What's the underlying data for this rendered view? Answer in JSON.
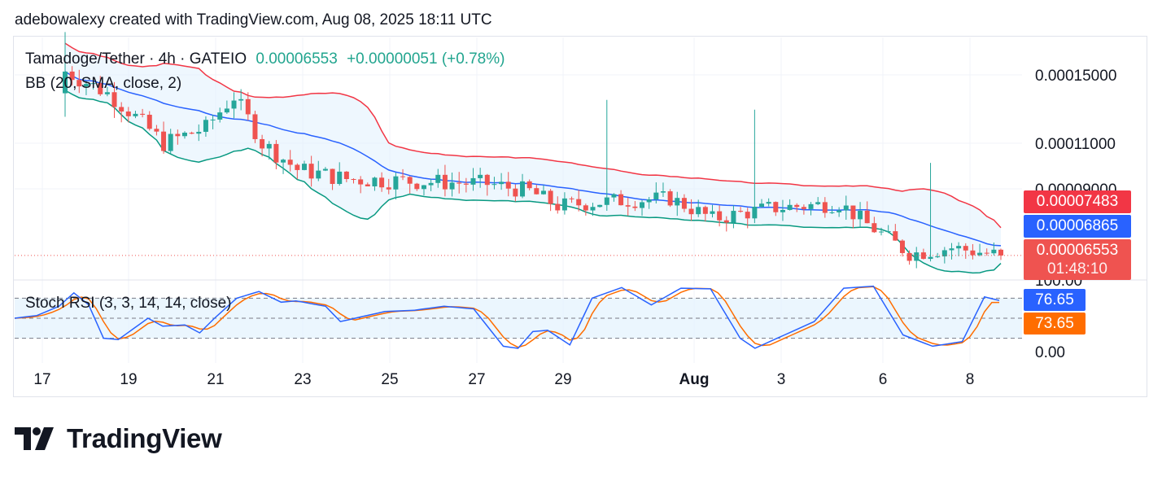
{
  "header": {
    "attribution": "adebowalexy created with TradingView.com, Aug 08, 2025 18:11 UTC"
  },
  "legend": {
    "symbol": "Tamadoge/Tether · 4h · GATEIO",
    "price": "0.00006553",
    "change": "+0.00000051 (+0.78%)",
    "bb": "BB (20, SMA, close, 2)",
    "stoch": "Stoch RSI (3, 3, 14, 14, close)"
  },
  "tags": {
    "upper_band": "0.00007483",
    "basis": "0.00006865",
    "last_price": "0.00006553",
    "countdown": "01:48:10",
    "stoch_k": "76.65",
    "stoch_d": "73.65"
  },
  "colors": {
    "up": "#26a69a",
    "down": "#ef5350",
    "upper": "#f23645",
    "basis": "#2962ff",
    "lower": "#089981",
    "k": "#2962ff",
    "d": "#ff6d00",
    "band_fill": "#e3f2fd"
  },
  "logo": {
    "text": "TradingView",
    "icon": "tradingview-logo-icon"
  },
  "chart_data": [
    {
      "type": "candlestick",
      "title": "Tamadoge/Tether · 4h · GATEIO",
      "y_ticks": [
        "0.00015000",
        "0.00011000",
        "0.00009000",
        "100.00"
      ],
      "x_ticks": [
        "17",
        "19",
        "21",
        "23",
        "25",
        "27",
        "29",
        "Aug",
        "3",
        "6",
        "8"
      ],
      "candle_count": 134,
      "ohlc_approx": {
        "first": {
          "o": 0.000138,
          "h": 0.000178,
          "l": 0.000124,
          "c": 0.000152
        },
        "last": {
          "o": 6.502e-05,
          "h": 6.65e-05,
          "l": 6.38e-05,
          "c": 6.553e-05
        }
      },
      "bollinger": {
        "length": 20,
        "source": "close",
        "mult": 2,
        "upper_last": 7.483e-05,
        "basis_last": 6.865e-05,
        "lower_last": 6.26e-05
      },
      "last_price": 6.553e-05
    },
    {
      "type": "line",
      "title": "Stoch RSI (3, 3, 14, 14, close)",
      "y_ticks": [
        "0.00"
      ],
      "levels": [
        80,
        50,
        20
      ],
      "series": [
        {
          "name": "K",
          "last": 76.65
        },
        {
          "name": "D",
          "last": 73.65
        }
      ]
    }
  ]
}
